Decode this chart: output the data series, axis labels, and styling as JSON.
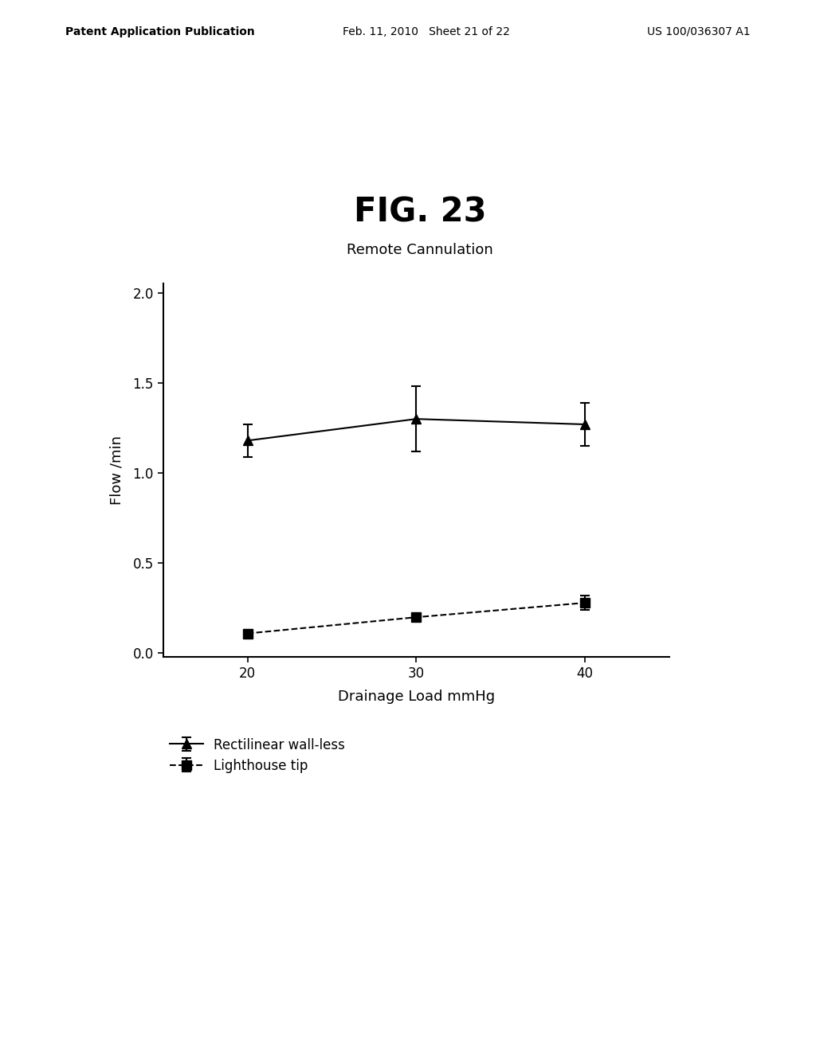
{
  "title": "FIG. 23",
  "subtitle": "Remote Cannulation",
  "xlabel": "Drainage Load mmHg",
  "ylabel": "Flow /min",
  "x": [
    20,
    30,
    40
  ],
  "series": [
    {
      "label": "Rectilinear wall-less",
      "y": [
        1.18,
        1.3,
        1.27
      ],
      "yerr": [
        0.09,
        0.18,
        0.12
      ],
      "linestyle": "solid",
      "marker": "^",
      "color": "#000000"
    },
    {
      "label": "Lighthouse tip",
      "y": [
        0.11,
        0.2,
        0.28
      ],
      "yerr": [
        0.02,
        0.02,
        0.04
      ],
      "linestyle": "dashed",
      "marker": "s",
      "color": "#000000"
    }
  ],
  "ylim": [
    -0.02,
    2.05
  ],
  "yticks": [
    0.0,
    0.5,
    1.0,
    1.5,
    2.0
  ],
  "xticks": [
    20,
    30,
    40
  ],
  "background_color": "#ffffff",
  "header_left": "Patent Application Publication",
  "header_mid": "Feb. 11, 2010   Sheet 21 of 22",
  "header_right": "US 100/036307 A1",
  "title_fontsize": 30,
  "subtitle_fontsize": 13,
  "header_fontsize": 10
}
